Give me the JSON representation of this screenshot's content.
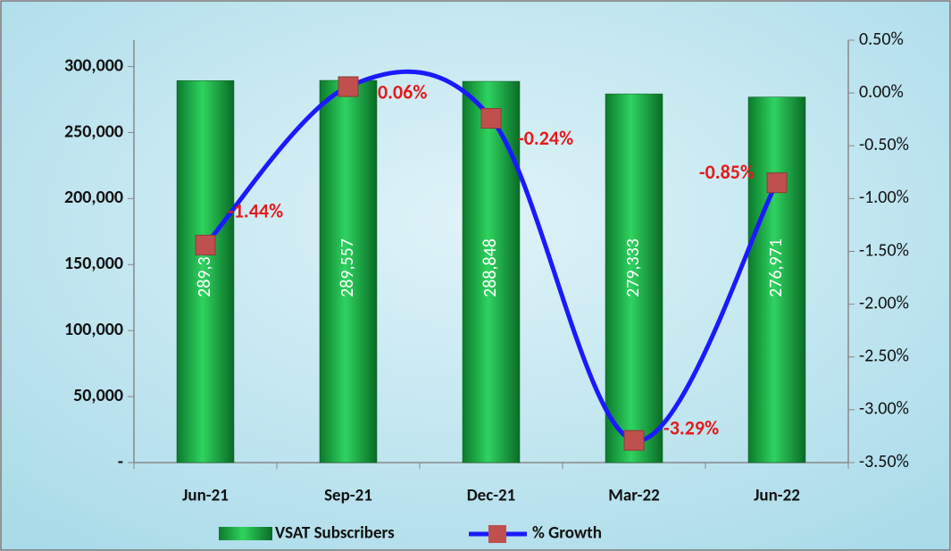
{
  "chart_data": {
    "type": "bar",
    "categories": [
      "Jun-21",
      "Sep-21",
      "Dec-21",
      "Mar-22",
      "Jun-22"
    ],
    "series": [
      {
        "name": "VSAT Subscribers",
        "type": "bar",
        "color": "#1fb34a",
        "values": [
          289392,
          289557,
          288848,
          279333,
          276971
        ],
        "value_labels": [
          "289,392",
          "289,557",
          "288,848",
          "279,333",
          "276,971"
        ]
      },
      {
        "name": "% Growth",
        "type": "line",
        "axis": "y2",
        "color": "#1a1aff",
        "marker_color": "#c0504d",
        "values": [
          -1.44,
          0.06,
          -0.24,
          -3.29,
          -0.85
        ],
        "value_labels": [
          "-1.44%",
          "0.06%",
          "-0.24%",
          "-3.29%",
          "-0.85%"
        ]
      }
    ],
    "ylim": [
      0,
      320000
    ],
    "yticks": [
      {
        "value": 0,
        "label": "-"
      },
      {
        "value": 50000,
        "label": "50,000"
      },
      {
        "value": 100000,
        "label": "100,000"
      },
      {
        "value": 150000,
        "label": "150,000"
      },
      {
        "value": 200000,
        "label": "200,000"
      },
      {
        "value": 250000,
        "label": "250,000"
      },
      {
        "value": 300000,
        "label": "300,000"
      }
    ],
    "y2lim": [
      -3.5,
      0.5
    ],
    "y2ticks": [
      {
        "value": 0.5,
        "label": "0.50%"
      },
      {
        "value": 0,
        "label": "0.00%"
      },
      {
        "value": -0.5,
        "label": "-0.50%"
      },
      {
        "value": -1,
        "label": "-1.00%"
      },
      {
        "value": -1.5,
        "label": "-1.50%"
      },
      {
        "value": -2,
        "label": "-2.00%"
      },
      {
        "value": -2.5,
        "label": "-2.50%"
      },
      {
        "value": -3,
        "label": "-3.00%"
      },
      {
        "value": -3.5,
        "label": "-3.50%"
      }
    ],
    "legend": "bottom"
  }
}
